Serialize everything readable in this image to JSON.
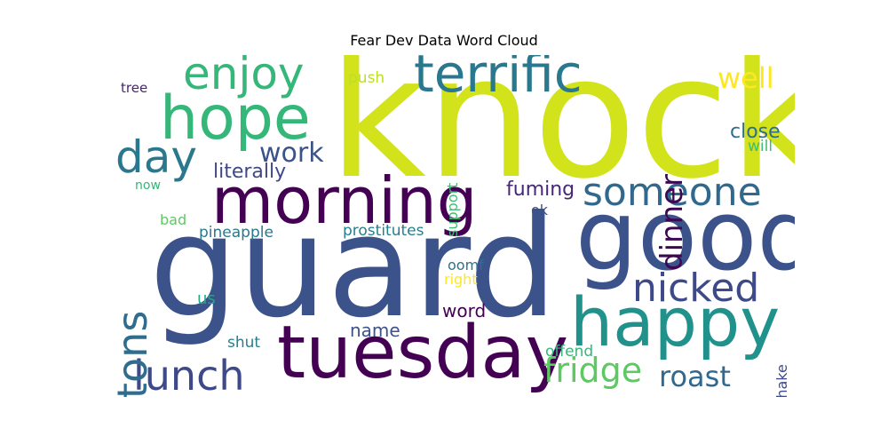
{
  "chart_data": {
    "type": "wordcloud",
    "title": "Fear Dev Data Word Cloud",
    "words": [
      {
        "text": "knock",
        "weight": 100,
        "color": "#d2e21b"
      },
      {
        "text": "guard",
        "weight": 96,
        "color": "#3b528b"
      },
      {
        "text": "good",
        "weight": 64,
        "color": "#3b528b"
      },
      {
        "text": "tuesday",
        "weight": 52,
        "color": "#440154"
      },
      {
        "text": "morning",
        "weight": 50,
        "color": "#440154"
      },
      {
        "text": "happy",
        "weight": 50,
        "color": "#21918c"
      },
      {
        "text": "hope",
        "weight": 44,
        "color": "#35b779"
      },
      {
        "text": "terrific",
        "weight": 40,
        "color": "#2a788e"
      },
      {
        "text": "someone",
        "weight": 34,
        "color": "#31688e"
      },
      {
        "text": "nicked",
        "weight": 34,
        "color": "#3e4989"
      },
      {
        "text": "enjoy",
        "weight": 34,
        "color": "#35b779"
      },
      {
        "text": "day",
        "weight": 34,
        "color": "#2a788e"
      },
      {
        "text": "lunch",
        "weight": 32,
        "color": "#3e4989"
      },
      {
        "text": "tons",
        "weight": 30,
        "color": "#2f6c8e"
      },
      {
        "text": "dinner",
        "weight": 24,
        "color": "#3e0751"
      },
      {
        "text": "fridge",
        "weight": 24,
        "color": "#5ec962"
      },
      {
        "text": "roast",
        "weight": 22,
        "color": "#31688e"
      },
      {
        "text": "work",
        "weight": 22,
        "color": "#3b528b"
      },
      {
        "text": "well",
        "weight": 20,
        "color": "#fde725"
      },
      {
        "text": "literally",
        "weight": 16,
        "color": "#3e4989"
      },
      {
        "text": "fuming",
        "weight": 16,
        "color": "#472878"
      },
      {
        "text": "close",
        "weight": 14,
        "color": "#2f6c8e"
      },
      {
        "text": "name",
        "weight": 14,
        "color": "#3b528b"
      },
      {
        "text": "word",
        "weight": 14,
        "color": "#440154"
      },
      {
        "text": "prostitutes",
        "weight": 12,
        "color": "#277f8e"
      },
      {
        "text": "pineapple",
        "weight": 12,
        "color": "#2a788e"
      },
      {
        "text": "support",
        "weight": 12,
        "color": "#3fbc73"
      },
      {
        "text": "shake",
        "weight": 12,
        "color": "#3e4989"
      },
      {
        "text": "offend",
        "weight": 12,
        "color": "#35b779"
      },
      {
        "text": "push",
        "weight": 11,
        "color": "#bddf26"
      },
      {
        "text": "will",
        "weight": 11,
        "color": "#3fbc73"
      },
      {
        "text": "tree",
        "weight": 11,
        "color": "#482475"
      },
      {
        "text": "ok",
        "weight": 11,
        "color": "#3b528b"
      },
      {
        "text": "us",
        "weight": 11,
        "color": "#22a884"
      },
      {
        "text": "oomf",
        "weight": 11,
        "color": "#2c728e"
      },
      {
        "text": "right",
        "weight": 11,
        "color": "#fde725"
      },
      {
        "text": "shut",
        "weight": 11,
        "color": "#277f8e"
      },
      {
        "text": "bad",
        "weight": 11,
        "color": "#5ec962"
      },
      {
        "text": "now",
        "weight": 10,
        "color": "#35b779"
      }
    ]
  }
}
